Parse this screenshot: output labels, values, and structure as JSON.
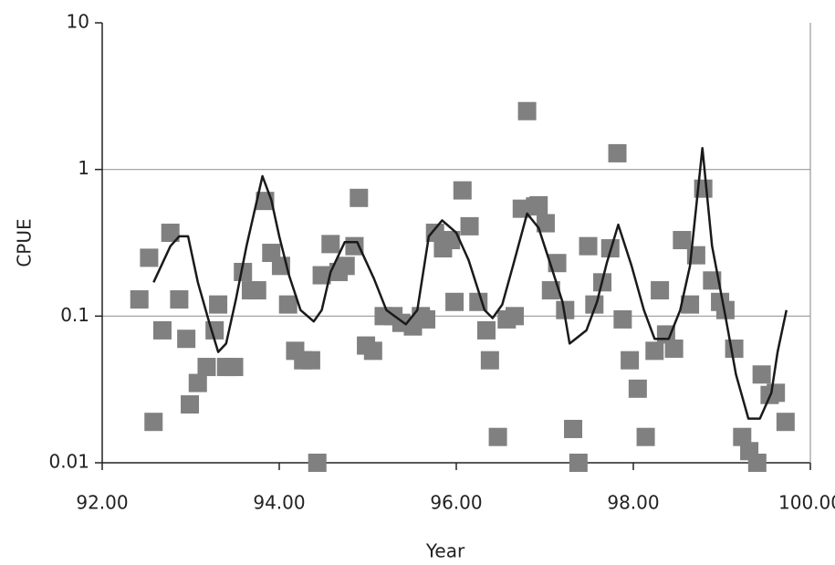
{
  "chart_data": {
    "type": "scatter",
    "x_label": "Year",
    "y_label": "CPUE",
    "xlim": [
      92,
      100
    ],
    "xticks": [
      {
        "value": 92,
        "label": "92.00"
      },
      {
        "value": 94,
        "label": "94.00"
      },
      {
        "value": 96,
        "label": "96.00"
      },
      {
        "value": 98,
        "label": "98.00"
      },
      {
        "value": 100,
        "label": "100.00"
      }
    ],
    "ylim": [
      0.01,
      10
    ],
    "yticks": [
      0.01,
      0.1,
      1,
      10
    ],
    "log_y": true,
    "grid": true,
    "series": [
      {
        "type": "scatter",
        "color": "#808080",
        "x": [
          92.42,
          92.53,
          92.58,
          92.68,
          92.77,
          92.87,
          92.95,
          92.99,
          93.08,
          93.18,
          93.27,
          93.31,
          93.4,
          93.49,
          93.59,
          93.68,
          93.75,
          93.84,
          93.91,
          94.02,
          94.1,
          94.18,
          94.27,
          94.36,
          94.43,
          94.48,
          94.58,
          94.67,
          94.75,
          94.85,
          94.9,
          94.98,
          95.06,
          95.18,
          95.29,
          95.38,
          95.51,
          95.6,
          95.66,
          95.76,
          95.85,
          95.94,
          95.98,
          96.07,
          96.15,
          96.25,
          96.34,
          96.38,
          96.47,
          96.57,
          96.66,
          96.74,
          96.8,
          96.89,
          96.93,
          97.01,
          97.14,
          97.07,
          97.23,
          97.32,
          97.38,
          97.49,
          97.56,
          97.65,
          97.74,
          97.82,
          97.88,
          97.96,
          98.05,
          98.14,
          98.24,
          98.3,
          98.37,
          98.46,
          98.55,
          98.64,
          98.71,
          98.79,
          98.89,
          98.98,
          99.04,
          99.14,
          99.23,
          99.31,
          99.4,
          99.45,
          99.54,
          99.61,
          99.72
        ],
        "values": [
          0.13,
          0.25,
          0.019,
          0.08,
          0.37,
          0.13,
          0.07,
          0.025,
          0.035,
          0.045,
          0.08,
          0.12,
          0.045,
          0.045,
          0.2,
          0.15,
          0.15,
          0.61,
          0.27,
          0.22,
          0.12,
          0.058,
          0.05,
          0.05,
          0.01,
          0.19,
          0.31,
          0.2,
          0.22,
          0.3,
          0.64,
          0.063,
          0.058,
          0.1,
          0.1,
          0.09,
          0.085,
          0.1,
          0.095,
          0.37,
          0.29,
          0.33,
          0.125,
          0.72,
          0.41,
          0.125,
          0.08,
          0.05,
          0.015,
          0.095,
          0.1,
          0.54,
          2.5,
          0.56,
          0.57,
          0.43,
          0.23,
          0.15,
          0.11,
          0.017,
          0.01,
          0.3,
          0.12,
          0.17,
          0.29,
          1.29,
          0.095,
          0.05,
          0.032,
          0.015,
          0.058,
          0.15,
          0.075,
          0.06,
          0.33,
          0.12,
          0.26,
          0.74,
          0.175,
          0.125,
          0.11,
          0.06,
          0.015,
          0.012,
          0.01,
          0.04,
          0.029,
          0.03,
          0.019
        ]
      },
      {
        "type": "line",
        "color": "#1a1a1a",
        "x": [
          92.58,
          92.77,
          92.87,
          92.97,
          93.08,
          93.21,
          93.31,
          93.4,
          93.51,
          93.63,
          93.81,
          93.91,
          94.0,
          94.11,
          94.24,
          94.39,
          94.48,
          94.58,
          94.74,
          94.88,
          95.07,
          95.21,
          95.43,
          95.56,
          95.69,
          95.84,
          96.0,
          96.14,
          96.32,
          96.41,
          96.52,
          96.64,
          96.8,
          96.93,
          97.07,
          97.2,
          97.28,
          97.47,
          97.59,
          97.7,
          97.83,
          97.98,
          98.12,
          98.24,
          98.4,
          98.53,
          98.64,
          98.78,
          98.89,
          99.04,
          99.16,
          99.3,
          99.43,
          99.56,
          99.63,
          99.73
        ],
        "values": [
          0.17,
          0.3,
          0.35,
          0.35,
          0.17,
          0.09,
          0.057,
          0.065,
          0.13,
          0.3,
          0.9,
          0.62,
          0.35,
          0.19,
          0.11,
          0.092,
          0.11,
          0.2,
          0.32,
          0.32,
          0.18,
          0.11,
          0.088,
          0.11,
          0.35,
          0.45,
          0.37,
          0.24,
          0.11,
          0.097,
          0.12,
          0.22,
          0.5,
          0.4,
          0.22,
          0.125,
          0.065,
          0.08,
          0.125,
          0.23,
          0.42,
          0.22,
          0.11,
          0.07,
          0.07,
          0.11,
          0.22,
          1.4,
          0.3,
          0.1,
          0.04,
          0.02,
          0.02,
          0.03,
          0.057,
          0.11
        ]
      }
    ]
  }
}
